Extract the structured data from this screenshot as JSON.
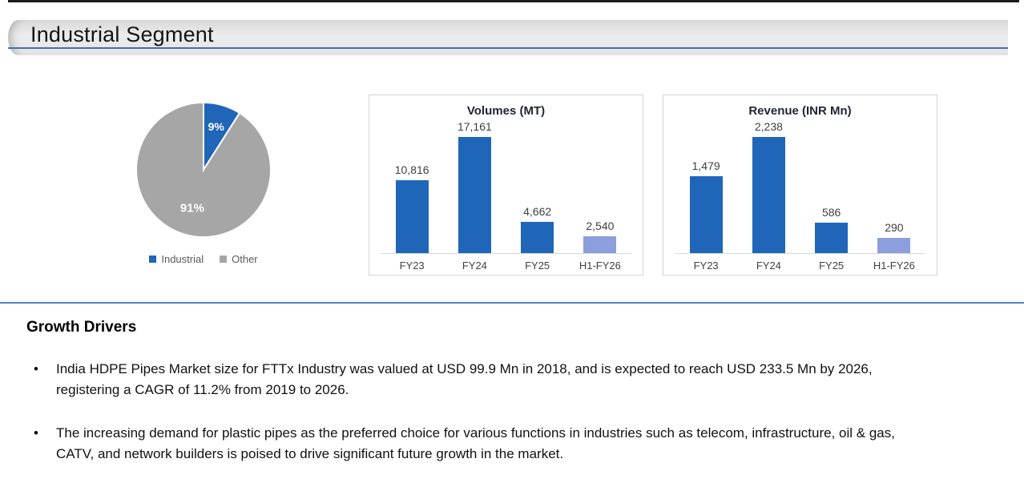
{
  "header": {
    "title": "Industrial Segment"
  },
  "chart_data": [
    {
      "type": "pie",
      "title": "",
      "labels": [
        "Industrial",
        "Other"
      ],
      "values": [
        9,
        91
      ],
      "value_labels": [
        "9%",
        "91%"
      ],
      "colors": [
        "#2066b8",
        "#a6a6a6"
      ],
      "legend_position": "bottom",
      "start_angle": "top, clockwise"
    },
    {
      "type": "bar",
      "title": "Volumes (MT)",
      "categories": [
        "FY23",
        "FY24",
        "FY25",
        "H1-FY26"
      ],
      "values": [
        10816,
        17161,
        4662,
        2540
      ],
      "value_labels": [
        "10,816",
        "17,161",
        "4,662",
        "2,540"
      ],
      "bar_colors": [
        "#2066b8",
        "#2066b8",
        "#2066b8",
        "#8c9edc"
      ],
      "xlabel": "",
      "ylabel": "",
      "ylim": [
        0,
        18000
      ],
      "grid": false,
      "legend": false
    },
    {
      "type": "bar",
      "title": "Revenue (INR Mn)",
      "categories": [
        "FY23",
        "FY24",
        "FY25",
        "H1-FY26"
      ],
      "values": [
        1479,
        2238,
        586,
        290
      ],
      "value_labels": [
        "1,479",
        "2,238",
        "586",
        "290"
      ],
      "bar_colors": [
        "#2066b8",
        "#2066b8",
        "#2066b8",
        "#8c9edc"
      ],
      "xlabel": "",
      "ylabel": "",
      "ylim": [
        0,
        2400
      ],
      "grid": false,
      "legend": false
    }
  ],
  "growth": {
    "heading": "Growth Drivers",
    "bullet_glyph": "•",
    "bullets": [
      "India HDPE Pipes Market size for FTTx Industry was valued at USD 99.9 Mn in 2018, and is expected to reach USD 233.5 Mn by 2026, registering a CAGR of 11.2% from 2019 to 2026.",
      "The increasing demand for plastic pipes as the preferred choice for various functions in industries such as telecom, infrastructure, oil & gas, CATV, and network builders is poised to drive significant future growth in the market."
    ]
  },
  "colors": {
    "accent_blue": "#2066b8",
    "light_blue": "#8c9edc",
    "gray": "#a6a6a6",
    "header_underline": "#4a6bae",
    "section_divider": "#4e81c4"
  }
}
